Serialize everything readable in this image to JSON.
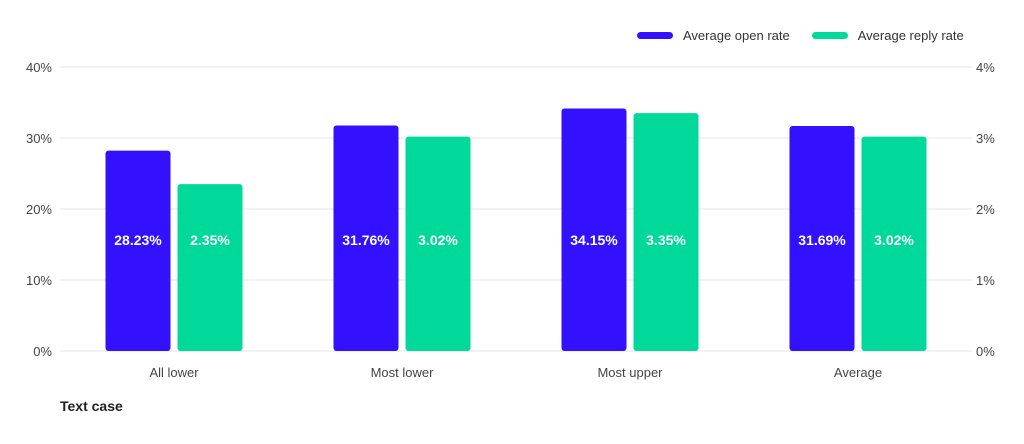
{
  "chart_data": {
    "type": "bar",
    "categories": [
      "All lower",
      "Most lower",
      "Most upper",
      "Average"
    ],
    "series": [
      {
        "name": "Average open rate",
        "color": "#3311ff",
        "axis": "left",
        "values": [
          28.23,
          31.76,
          34.15,
          31.69
        ],
        "labels": [
          "28.23%",
          "31.76%",
          "34.15%",
          "31.69%"
        ]
      },
      {
        "name": "Average reply rate",
        "color": "#00d99a",
        "axis": "right",
        "values": [
          2.35,
          3.02,
          3.35,
          3.02
        ],
        "labels": [
          "2.35%",
          "3.02%",
          "3.35%",
          "3.02%"
        ]
      }
    ],
    "xlabel": "Text case",
    "ylabel": "",
    "ylim_left": [
      0,
      40
    ],
    "ylim_right": [
      0,
      4
    ],
    "left_ticks": [
      "0%",
      "10%",
      "20%",
      "30%",
      "40%"
    ],
    "right_ticks": [
      "0%",
      "1%",
      "2%",
      "3%",
      "4%"
    ],
    "grid": true,
    "legend_position": "top-right"
  }
}
